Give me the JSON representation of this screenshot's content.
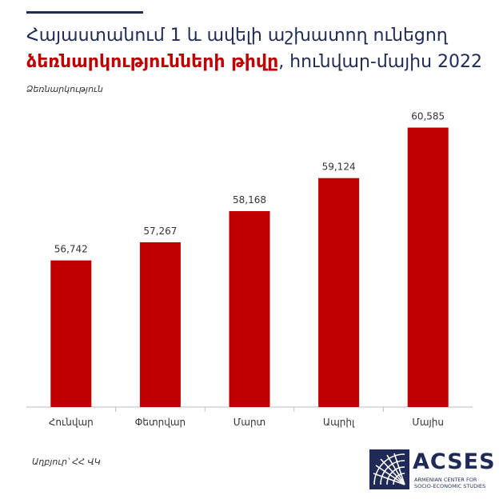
{
  "title": {
    "line1": "Հայաստանում 1 և ավելի աշխատող ունեցող",
    "highlight": "ձեռնարկությունների թիվը",
    "line2_rest": ", հունվար-մայիս 2022"
  },
  "source": "Աղբյուր՝ ՀՀ ՎԿ",
  "logo": {
    "name": "ACSES",
    "subtitle_line1": "ARMENIAN CENTER FOR",
    "subtitle_line2": "SOCIO-ECONOMIC STUDIES"
  },
  "colors": {
    "bar": "#c00000",
    "title": "#1f2a56",
    "highlight": "#c00000"
  },
  "chart_data": {
    "type": "bar",
    "title": "Հայաստանում 1 և ավելի աշխատող ունեցող ձեռնարկությունների թիվը, հունվար-մայիս 2022",
    "ylabel": "Ձեռնարկություն",
    "xlabel": "",
    "categories": [
      "Հունվար",
      "Փետրվար",
      "Մարտ",
      "Ապրիլ",
      "Մայիս"
    ],
    "values": [
      56742,
      57267,
      58168,
      59124,
      60585
    ],
    "value_labels": [
      "56,742",
      "57,267",
      "58,168",
      "59,124",
      "60,585"
    ],
    "ylim": [
      52500,
      61500
    ],
    "grid": false,
    "legend": "none"
  }
}
